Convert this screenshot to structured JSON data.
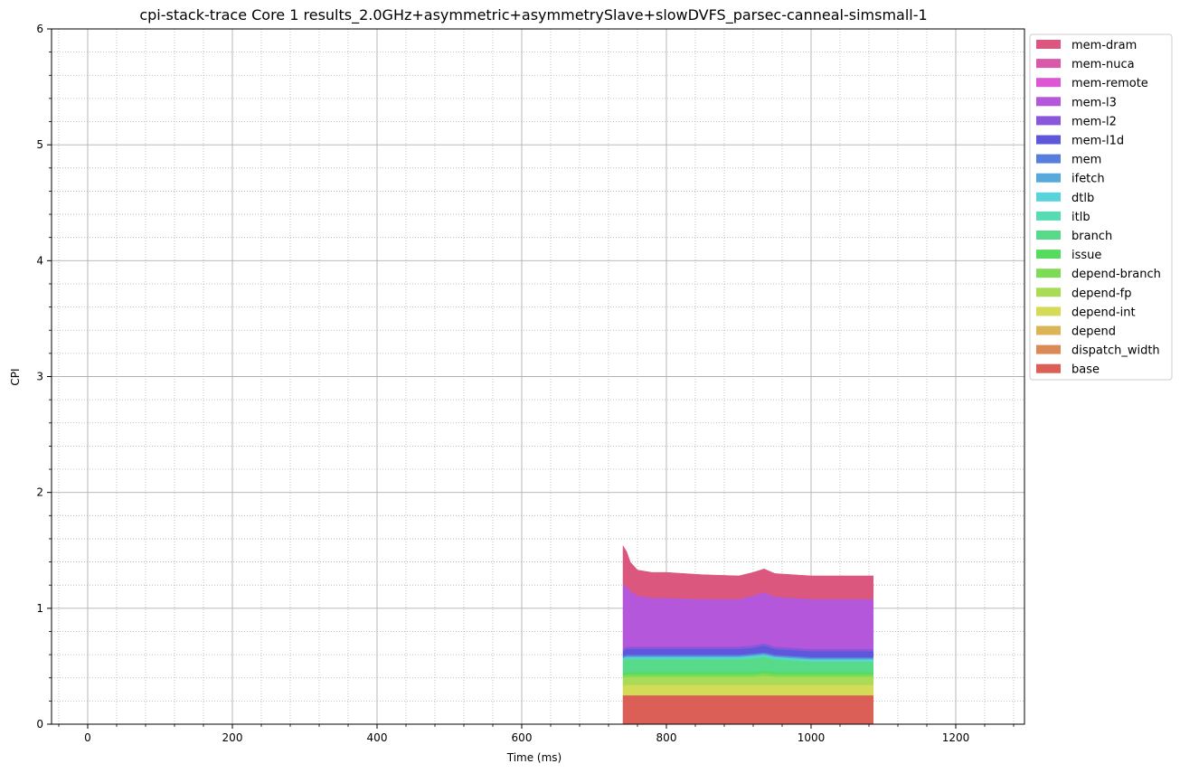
{
  "chart_data": {
    "type": "area",
    "title": "cpi-stack-trace Core 1 results_2.0GHz+asymmetric+asymmetrySlave+slowDVFS_parsec-canneal-simsmall-1",
    "xlabel": "Time (ms)",
    "ylabel": "CPI",
    "xlim": [
      -50,
      1295
    ],
    "ylim": [
      0,
      6
    ],
    "x_ticks": [
      "0",
      "200",
      "400",
      "600",
      "800",
      "1000",
      "1200"
    ],
    "x_tick_values": [
      0,
      200,
      400,
      600,
      800,
      1000,
      1200
    ],
    "y_ticks": [
      "0",
      "1",
      "2",
      "3",
      "4",
      "5",
      "6"
    ],
    "y_tick_values": [
      0,
      1,
      2,
      3,
      4,
      5,
      6
    ],
    "grid": true,
    "minor_grid": true,
    "legend_position": "outside-top-right",
    "stacked": true,
    "x": [
      740,
      745,
      750,
      760,
      780,
      800,
      850,
      900,
      920,
      935,
      950,
      1000,
      1050,
      1086
    ],
    "series": [
      {
        "name": "base",
        "color": "#db5f57",
        "values": [
          0.25,
          0.25,
          0.25,
          0.25,
          0.25,
          0.25,
          0.25,
          0.25,
          0.25,
          0.25,
          0.25,
          0.25,
          0.25,
          0.25
        ]
      },
      {
        "name": "dispatch_width",
        "color": "#db8a57",
        "values": [
          0,
          0,
          0,
          0,
          0,
          0,
          0,
          0,
          0,
          0,
          0,
          0,
          0,
          0
        ]
      },
      {
        "name": "depend",
        "color": "#dbb457",
        "values": [
          0,
          0,
          0,
          0,
          0,
          0,
          0,
          0,
          0,
          0,
          0,
          0,
          0,
          0
        ]
      },
      {
        "name": "depend-int",
        "color": "#d3db57",
        "values": [
          0.08,
          0.09,
          0.09,
          0.09,
          0.09,
          0.09,
          0.09,
          0.09,
          0.09,
          0.09,
          0.09,
          0.09,
          0.09,
          0.09
        ]
      },
      {
        "name": "depend-fp",
        "color": "#a9db57",
        "values": [
          0.07,
          0.07,
          0.07,
          0.07,
          0.07,
          0.07,
          0.07,
          0.07,
          0.07,
          0.08,
          0.07,
          0.07,
          0.07,
          0.07
        ]
      },
      {
        "name": "depend-branch",
        "color": "#7edb57",
        "values": [
          0.02,
          0.02,
          0.02,
          0.02,
          0.02,
          0.02,
          0.02,
          0.02,
          0.02,
          0.02,
          0.02,
          0.02,
          0.02,
          0.02
        ]
      },
      {
        "name": "issue",
        "color": "#57db5f",
        "values": [
          0.02,
          0.02,
          0.02,
          0.02,
          0.02,
          0.02,
          0.02,
          0.02,
          0.02,
          0.02,
          0.02,
          0.02,
          0.02,
          0.02
        ]
      },
      {
        "name": "branch",
        "color": "#57db8a",
        "values": [
          0.11,
          0.11,
          0.11,
          0.11,
          0.11,
          0.11,
          0.11,
          0.11,
          0.12,
          0.12,
          0.11,
          0.09,
          0.09,
          0.09
        ]
      },
      {
        "name": "itlb",
        "color": "#57dbb4",
        "values": [
          0.01,
          0.01,
          0.01,
          0.01,
          0.01,
          0.01,
          0.01,
          0.01,
          0.01,
          0.01,
          0.01,
          0.01,
          0.01,
          0.01
        ]
      },
      {
        "name": "dtlb",
        "color": "#57d3db",
        "values": [
          0.01,
          0.01,
          0.01,
          0.01,
          0.01,
          0.01,
          0.01,
          0.01,
          0.01,
          0.01,
          0.01,
          0.01,
          0.01,
          0.01
        ]
      },
      {
        "name": "ifetch",
        "color": "#57a9db",
        "values": [
          0.01,
          0.01,
          0.01,
          0.01,
          0.01,
          0.01,
          0.01,
          0.01,
          0.01,
          0.01,
          0.01,
          0.01,
          0.01,
          0.01
        ]
      },
      {
        "name": "mem",
        "color": "#577edb",
        "values": [
          0.01,
          0.01,
          0.01,
          0.01,
          0.01,
          0.01,
          0.01,
          0.01,
          0.01,
          0.01,
          0.01,
          0.01,
          0.01,
          0.01
        ]
      },
      {
        "name": "mem-l1d",
        "color": "#5f57db",
        "values": [
          0.04,
          0.05,
          0.05,
          0.05,
          0.05,
          0.05,
          0.05,
          0.05,
          0.05,
          0.06,
          0.05,
          0.05,
          0.05,
          0.05
        ]
      },
      {
        "name": "mem-l2",
        "color": "#8a57db",
        "values": [
          0.02,
          0.02,
          0.02,
          0.02,
          0.02,
          0.02,
          0.02,
          0.02,
          0.02,
          0.02,
          0.02,
          0.02,
          0.02,
          0.02
        ]
      },
      {
        "name": "mem-l3",
        "color": "#b457db",
        "values": [
          0.55,
          0.52,
          0.48,
          0.44,
          0.42,
          0.42,
          0.41,
          0.41,
          0.43,
          0.44,
          0.43,
          0.43,
          0.43,
          0.43
        ]
      },
      {
        "name": "mem-remote",
        "color": "#db57d3",
        "values": [
          0,
          0,
          0,
          0,
          0,
          0,
          0,
          0,
          0,
          0,
          0,
          0,
          0,
          0
        ]
      },
      {
        "name": "mem-nuca",
        "color": "#db57a9",
        "values": [
          0,
          0,
          0,
          0,
          0,
          0,
          0,
          0,
          0,
          0,
          0,
          0,
          0,
          0
        ]
      },
      {
        "name": "mem-dram",
        "color": "#db577e",
        "values": [
          0.34,
          0.3,
          0.25,
          0.22,
          0.22,
          0.22,
          0.21,
          0.2,
          0.2,
          0.2,
          0.2,
          0.2,
          0.2,
          0.2
        ]
      }
    ],
    "legend_order": [
      "mem-dram",
      "mem-nuca",
      "mem-remote",
      "mem-l3",
      "mem-l2",
      "mem-l1d",
      "mem",
      "ifetch",
      "dtlb",
      "itlb",
      "branch",
      "issue",
      "depend-branch",
      "depend-fp",
      "depend-int",
      "depend",
      "dispatch_width",
      "base"
    ]
  }
}
